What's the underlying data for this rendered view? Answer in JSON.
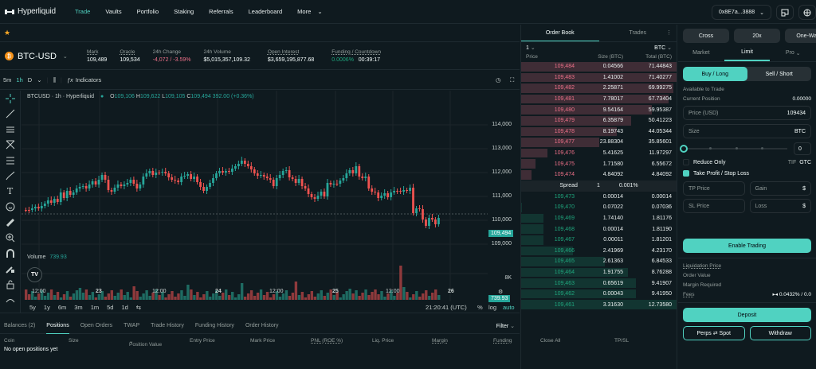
{
  "header": {
    "logo_text": "Hyperliquid",
    "nav": [
      "Trade",
      "Vaults",
      "Portfolio",
      "Staking",
      "Referrals",
      "Leaderboard",
      "More"
    ],
    "active_nav": "Trade",
    "wallet": "0x8E7a...3888"
  },
  "market": {
    "symbol": "BTC-USD",
    "stats": [
      {
        "label": "Mark",
        "value": "109,489"
      },
      {
        "label": "Oracle",
        "value": "109,534"
      },
      {
        "label": "24h Change",
        "value": "-4,072 / -3.59%",
        "color": "#ed7088"
      },
      {
        "label": "24h Volume",
        "value": "$5,015,357,109.32"
      },
      {
        "label": "Open Interest",
        "value": "$3,659,195,877.68"
      },
      {
        "label": "Funding / Countdown",
        "value": "0.0006%",
        "value2": "00:39:17",
        "color": "#1fa67d"
      }
    ]
  },
  "chart_toolbar": {
    "intervals": [
      "5m",
      "1h",
      "D"
    ],
    "active_interval": "1h",
    "indicators_label": "Indicators"
  },
  "chart": {
    "legend_title": "BTCUSD · 1h · Hyperliquid",
    "ohlc": {
      "O": "109,106",
      "H": "109,622",
      "L": "109,105",
      "C": "109,494",
      "change": "392.00 (+0.36%)"
    },
    "volume_label": "Volume",
    "volume_value": "739.93",
    "current_price_tag": "109,494",
    "volume_tag": "739.93",
    "y_labels": [
      "114,000",
      "113,000",
      "112,000",
      "111,000",
      "110,000",
      "109,000"
    ],
    "vol_axis_label": "8K",
    "x_labels": [
      "12:00",
      "23",
      "12:00",
      "24",
      "12:00",
      "25",
      "12:00",
      "26"
    ],
    "ranges": [
      "5y",
      "1y",
      "6m",
      "3m",
      "1m",
      "5d",
      "1d"
    ],
    "clock": "21:20:41 (UTC)",
    "scale_opts": [
      "%",
      "log",
      "auto"
    ]
  },
  "chart_data": {
    "type": "candlestick",
    "title": "BTCUSD · 1h · Hyperliquid",
    "ylim": [
      108500,
      114500
    ],
    "y_ticks": [
      109000,
      110000,
      111000,
      112000,
      113000,
      114000
    ],
    "x_ticks": [
      "12:00",
      "23",
      "12:00",
      "24",
      "12:00",
      "25",
      "12:00",
      "26"
    ],
    "last": {
      "open": 109106,
      "high": 109622,
      "low": 109105,
      "close": 109494,
      "change": 392.0,
      "change_pct": 0.36
    },
    "volume_last": 739.93
  },
  "orderbook": {
    "tabs": [
      "Order Book",
      "Trades"
    ],
    "active_tab": "Order Book",
    "tick": "1",
    "unit": "BTC",
    "headers": [
      "Price",
      "Size (BTC)",
      "Total (BTC)"
    ],
    "asks": [
      [
        "109,484",
        "0.04566",
        "71.44843"
      ],
      [
        "109,483",
        "1.41002",
        "71.40277"
      ],
      [
        "109,482",
        "2.25871",
        "69.99275"
      ],
      [
        "109,481",
        "7.78017",
        "67.73404"
      ],
      [
        "109,480",
        "9.54164",
        "59.95387"
      ],
      [
        "109,479",
        "6.35879",
        "50.41223"
      ],
      [
        "109,478",
        "8.19743",
        "44.05344"
      ],
      [
        "109,477",
        "23.88304",
        "35.85601"
      ],
      [
        "109,476",
        "5.41625",
        "11.97297"
      ],
      [
        "109,475",
        "1.71580",
        "6.55672"
      ],
      [
        "109,474",
        "4.84092",
        "4.84092"
      ]
    ],
    "spread": {
      "label": "Spread",
      "value": "1",
      "pct": "0.001%"
    },
    "bids": [
      [
        "109,473",
        "0.00014",
        "0.00014"
      ],
      [
        "109,470",
        "0.07022",
        "0.07036"
      ],
      [
        "109,469",
        "1.74140",
        "1.81176"
      ],
      [
        "109,468",
        "0.00014",
        "1.81190"
      ],
      [
        "109,467",
        "0.00011",
        "1.81201"
      ],
      [
        "109,466",
        "2.41969",
        "4.23170"
      ],
      [
        "109,465",
        "2.61363",
        "6.84533"
      ],
      [
        "109,464",
        "1.91755",
        "8.76288"
      ],
      [
        "109,463",
        "0.65619",
        "9.41907"
      ],
      [
        "109,462",
        "0.00043",
        "9.41950"
      ],
      [
        "109,461",
        "3.31630",
        "12.73580"
      ]
    ]
  },
  "trade_panel": {
    "margin_mode": "Cross",
    "leverage": "20x",
    "position_mode": "One-Way",
    "order_tabs": [
      "Market",
      "Limit",
      "Pro"
    ],
    "active_order_tab": "Limit",
    "buy_label": "Buy / Long",
    "sell_label": "Sell / Short",
    "available_label": "Available to Trade",
    "current_position_label": "Current Position",
    "current_position_value": "0.00000",
    "price_label": "Price (USD)",
    "price_value": "109434",
    "size_label": "Size",
    "size_unit": "BTC",
    "slider_value": "0",
    "reduce_only": "Reduce Only",
    "tif_label": "TIF",
    "tif_value": "GTC",
    "tpsl_label": "Take Profit / Stop Loss",
    "tp_price": "TP Price",
    "gain": "Gain",
    "sl_price": "SL Price",
    "loss": "Loss",
    "currency": "$",
    "enable_trading": "Enable Trading",
    "liq_price": "Liquidation Price",
    "order_value": "Order Value",
    "margin_required": "Margin Required",
    "fees_label": "Fees",
    "fees_value": "0.0432% / 0.0",
    "deposit": "Deposit",
    "perps_spot": "Perps ⇄ Spot",
    "withdraw": "Withdraw"
  },
  "bottom": {
    "tabs": [
      "Balances (2)",
      "Positions",
      "Open Orders",
      "TWAP",
      "Trade History",
      "Funding History",
      "Order History"
    ],
    "active_tab": "Positions",
    "filter": "Filter",
    "columns": [
      "Coin",
      "Size",
      "Position Value",
      "Entry Price",
      "Mark Price",
      "PNL (ROE %)",
      "Liq. Price",
      "Margin",
      "Funding",
      "Close All",
      "TP/SL"
    ],
    "empty_text": "No open positions yet"
  },
  "colors": {
    "accent": "#50d2c1",
    "up": "#26a69a",
    "down": "#ef5350",
    "bid": "#1fa67d",
    "ask": "#ed7088",
    "bg": "#0f1a1f"
  }
}
